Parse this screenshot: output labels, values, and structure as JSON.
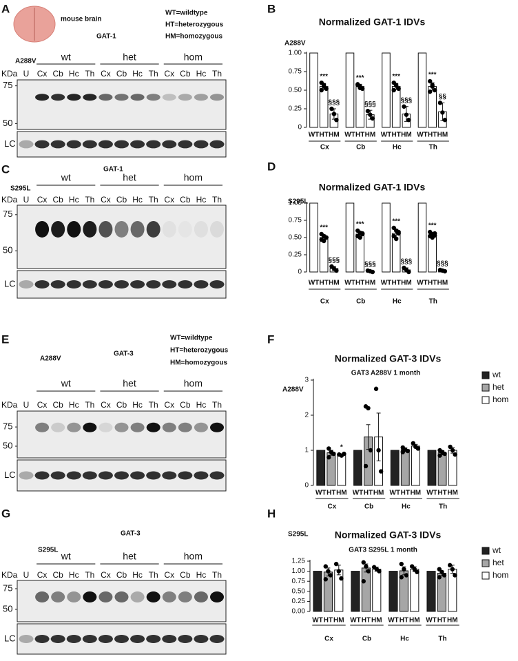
{
  "blots": [
    {
      "letter": "A",
      "image_label": "mouse brain",
      "protein": "GAT-1",
      "legend": [
        "WT=wildtype",
        "HT=heterozygous",
        "HM=homozygous"
      ],
      "mutation": "A288V",
      "unit": "KDa",
      "groups": [
        "wt",
        "het",
        "hom"
      ],
      "lanes": [
        "U",
        "Cx",
        "Cb",
        "Hc",
        "Th",
        "Cx",
        "Cb",
        "Hc",
        "Th",
        "Cx",
        "Cb",
        "Hc",
        "Th"
      ],
      "markers": [
        75,
        50
      ],
      "loading": "LC"
    },
    {
      "letter": "C",
      "protein": "GAT-1",
      "mutation": "S295L",
      "unit": "KDa",
      "groups": [
        "wt",
        "het",
        "hom"
      ],
      "lanes": [
        "U",
        "Cx",
        "Cb",
        "Hc",
        "Th",
        "Cx",
        "Cb",
        "Hc",
        "Th",
        "Cx",
        "Cb",
        "Hc",
        "Th"
      ],
      "markers": [
        75,
        50
      ],
      "loading": "LC"
    },
    {
      "letter": "E",
      "protein": "GAT-3",
      "legend": [
        "WT=wildtype",
        "HT=heterozygous",
        "HM=homozygous"
      ],
      "mutation": "A288V",
      "unit": "KDa",
      "groups": [
        "wt",
        "het",
        "hom"
      ],
      "lanes": [
        "U",
        "Cx",
        "Cb",
        "Hc",
        "Th",
        "Cx",
        "Cb",
        "Hc",
        "Th",
        "Cx",
        "Cb",
        "Hc",
        "Th"
      ],
      "markers": [
        75,
        50
      ],
      "loading": "LC"
    },
    {
      "letter": "G",
      "protein": "GAT-3",
      "mutation": "S295L",
      "unit": "KDa",
      "groups": [
        "wt",
        "het",
        "hom"
      ],
      "lanes": [
        "U",
        "Cx",
        "Cb",
        "Hc",
        "Th",
        "Cx",
        "Cb",
        "Hc",
        "Th",
        "Cx",
        "Cb",
        "Hc",
        "Th"
      ],
      "markers": [
        75,
        50
      ],
      "loading": "LC"
    }
  ],
  "chart_data": [
    {
      "type": "bar",
      "letter": "B",
      "title": "Normalized GAT-1 IDVs",
      "label": "A288V",
      "categories": [
        "Cx",
        "Cb",
        "Hc",
        "Th"
      ],
      "bar_labels": [
        "WT",
        "HT",
        "HM"
      ],
      "ylim": [
        0,
        1
      ],
      "yticks": [
        0,
        0.25,
        {
          "value": 0.5,
          "label": "0.50"
        },
        0.75,
        {
          "value": 1,
          "label": "1.00"
        }
      ],
      "series": [
        {
          "color": "#ffffff",
          "values": [
            1,
            1,
            1,
            1
          ],
          "errors": [
            0,
            0,
            0,
            0
          ]
        },
        {
          "color": "#ffffff",
          "values": [
            0.55,
            0.55,
            0.55,
            0.55
          ],
          "errors": [
            0.04,
            0.03,
            0.04,
            0.05
          ],
          "points": [
            [
              0.6,
              0.55,
              0.52,
              0.5,
              0.57
            ],
            [
              0.58,
              0.55,
              0.52,
              0.57,
              0.53
            ],
            [
              0.6,
              0.56,
              0.52,
              0.5,
              0.57
            ],
            [
              0.62,
              0.55,
              0.5,
              0.48,
              0.57
            ]
          ],
          "annotations": [
            "***",
            "***",
            "***",
            "***"
          ]
        },
        {
          "color": "#ffffff",
          "values": [
            0.18,
            0.17,
            0.18,
            0.21
          ],
          "errors": [
            0.07,
            0.06,
            0.1,
            0.12
          ],
          "points": [
            [
              0.25,
              0.18,
              0.1
            ],
            [
              0.22,
              0.17,
              0.12
            ],
            [
              0.28,
              0.17,
              0.1
            ],
            [
              0.33,
              0.2,
              0.1
            ]
          ],
          "annotations": [
            "§§§",
            "§§§",
            "§§§",
            "§§"
          ]
        }
      ]
    },
    {
      "type": "bar",
      "letter": "D",
      "title": "Normalized GAT-1 IDVs",
      "label": "S295L",
      "categories": [
        "Cx",
        "Cb",
        "Hc",
        "Th"
      ],
      "bar_labels": [
        "WT",
        "HT",
        "HM"
      ],
      "ylim": [
        0,
        1
      ],
      "yticks": [
        0,
        0.25,
        {
          "value": 0.5,
          "label": "0.50"
        },
        0.75,
        {
          "value": 1,
          "label": "1.00"
        }
      ],
      "series": [
        {
          "color": "#ffffff",
          "values": [
            1,
            1,
            1,
            1
          ],
          "errors": [
            0,
            0,
            0,
            0
          ]
        },
        {
          "color": "#ffffff",
          "values": [
            0.5,
            0.55,
            0.56,
            0.54
          ],
          "errors": [
            0.04,
            0.04,
            0.06,
            0.03
          ],
          "points": [
            [
              0.55,
              0.52,
              0.5,
              0.47,
              0.45,
              0.5
            ],
            [
              0.6,
              0.57,
              0.55,
              0.52,
              0.5,
              0.56
            ],
            [
              0.64,
              0.6,
              0.56,
              0.52,
              0.48,
              0.58
            ],
            [
              0.58,
              0.55,
              0.53,
              0.52,
              0.5,
              0.56
            ]
          ],
          "annotations": [
            "***",
            "***",
            "***",
            "***"
          ]
        },
        {
          "color": "#ffffff",
          "values": [
            0.05,
            0.01,
            0.03,
            0.02
          ],
          "errors": [
            0.03,
            0.01,
            0.03,
            0.01
          ],
          "points": [
            [
              0.08,
              0.05,
              0.02
            ],
            [
              0.02,
              0.01,
              0
            ],
            [
              0.06,
              0.03,
              0
            ],
            [
              0.03,
              0.02,
              0.01
            ]
          ],
          "annotations": [
            "§§§",
            "§§§",
            "§§§",
            "§§§"
          ]
        }
      ]
    },
    {
      "type": "bar",
      "letter": "F",
      "title": "Normalized GAT-3 IDVs",
      "subtitle": "GAT3 A288V 1 month",
      "label": "A288V",
      "categories": [
        "Cx",
        "Cb",
        "Hc",
        "Th"
      ],
      "bar_labels": [
        "WT",
        "HT",
        "HM"
      ],
      "legend": "right",
      "ylim": [
        0,
        3
      ],
      "yticks": [
        0,
        1,
        2,
        3
      ],
      "series": [
        {
          "name": "wt",
          "color": "#222222",
          "values": [
            1,
            1,
            1,
            1
          ],
          "errors": [
            0,
            0,
            0,
            0
          ]
        },
        {
          "name": "het",
          "color": "#a6a6a6",
          "values": [
            0.93,
            1.38,
            1.02,
            0.93
          ],
          "errors": [
            0.07,
            0.35,
            0.05,
            0.06
          ],
          "points": [
            [
              1.05,
              0.95,
              0.9,
              0.8
            ],
            [
              2.25,
              2.2,
              1.0,
              0.55
            ],
            [
              1.08,
              1.02,
              0.98,
              0.95
            ],
            [
              1.0,
              0.95,
              0.9,
              0.85
            ]
          ],
          "annotations": [
            null,
            null,
            null,
            null
          ]
        },
        {
          "name": "hom",
          "color": "#ffffff",
          "values": [
            0.87,
            1.38,
            1.12,
            1.0
          ],
          "errors": [
            0.03,
            0.68,
            0.05,
            0.08
          ],
          "points": [
            [
              0.88,
              0.85,
              0.9
            ],
            [
              2.75,
              1.0,
              0.4
            ],
            [
              1.2,
              1.1,
              1.05
            ],
            [
              1.1,
              1.0,
              0.88
            ]
          ],
          "annotations": [
            "*",
            null,
            null,
            null
          ]
        }
      ]
    },
    {
      "type": "bar",
      "letter": "H",
      "title": "Normalized GAT-3 IDVs",
      "subtitle": "GAT3 S295L 1 month",
      "label": "S295L",
      "categories": [
        "Cx",
        "Cb",
        "Hc",
        "Th"
      ],
      "bar_labels": [
        "WT",
        "HT",
        "HM"
      ],
      "legend": "right",
      "ylim": [
        0,
        1.25
      ],
      "yticks": [
        {
          "value": 0,
          "label": "0.00"
        },
        0.25,
        {
          "value": 0.5,
          "label": "0.50"
        },
        0.75,
        {
          "value": 1,
          "label": "1.00"
        },
        1.25
      ],
      "series": [
        {
          "name": "wt",
          "color": "#222222",
          "values": [
            1,
            1,
            1,
            1
          ],
          "errors": [
            0,
            0,
            0,
            0
          ]
        },
        {
          "name": "het",
          "color": "#a6a6a6",
          "values": [
            0.98,
            1.08,
            1.01,
            0.95
          ],
          "errors": [
            0.1,
            0.1,
            0.1,
            0.06
          ],
          "points": [
            [
              1.12,
              1.0,
              0.9,
              0.8
            ],
            [
              1.22,
              1.12,
              1.0,
              0.75
            ],
            [
              1.18,
              1.05,
              0.9,
              0.85
            ],
            [
              1.05,
              0.98,
              0.9,
              0.85
            ]
          ],
          "annotations": [
            null,
            null,
            null,
            null
          ]
        },
        {
          "name": "hom",
          "color": "#ffffff",
          "values": [
            1.03,
            1.05,
            1.05,
            1.05
          ],
          "errors": [
            0.12,
            0.05,
            0.06,
            0.1
          ],
          "points": [
            [
              1.18,
              1.0,
              0.82
            ],
            [
              1.1,
              1.05,
              1.0
            ],
            [
              1.12,
              1.05,
              0.98
            ],
            [
              1.15,
              1.05,
              0.9
            ]
          ],
          "annotations": [
            null,
            null,
            null,
            null
          ]
        }
      ]
    }
  ]
}
